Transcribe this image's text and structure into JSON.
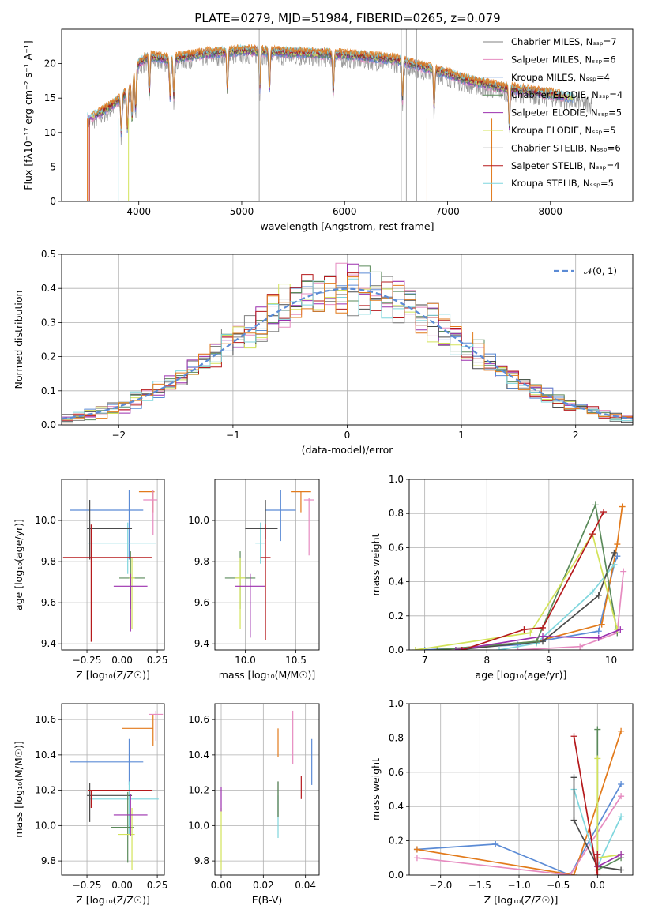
{
  "figure_title": "PLATE=0279, MJD=51984, FIBERID=0265, z=0.079",
  "colors": {
    "blue": "#5b8bd5",
    "orange": "#e27a1b",
    "green": "#5a8a5a",
    "pink": "#e68bc0",
    "purple": "#9b2fae",
    "yellow": "#d3e35a",
    "dark": "#4a4a4a",
    "red": "#b5191c",
    "cyan": "#7fd6dd",
    "grey": "#808080"
  },
  "chart_data": [
    {
      "id": "spectrum",
      "type": "line",
      "title": "PLATE=0279, MJD=51984, FIBERID=0265, z=0.079",
      "xlabel": "wavelength [Angstrom, rest frame]",
      "ylabel": "Flux [f$_\\lambda 10^{-17}$ erg cm$^{-2}$ s$^{-1}$ A$^{-1}$]",
      "xlim": [
        3250,
        8800
      ],
      "ylim": [
        0,
        25
      ],
      "xticks": [
        4000,
        5000,
        6000,
        7000,
        8000
      ],
      "yticks": [
        0,
        5,
        10,
        15,
        20
      ],
      "grid": false,
      "legend": "upper right",
      "continuum_x": [
        3500,
        3600,
        3750,
        3900,
        4000,
        4100,
        4300,
        4600,
        5000,
        5500,
        6000,
        6500,
        7000,
        7200,
        7500,
        8000,
        8400
      ],
      "continuum_y": [
        12,
        12.5,
        14,
        16,
        20,
        21,
        20.5,
        21.3,
        21.8,
        21.5,
        21.2,
        20.5,
        18.5,
        17.5,
        16.5,
        15.5,
        14.5
      ],
      "series": [
        {
          "name": "Chabrier MILES, N$_{SSP}$=7",
          "color": "grey"
        },
        {
          "name": "Salpeter MILES, N$_{SSP}$=6",
          "color": "pink"
        },
        {
          "name": "Kroupa MILES, N$_{SSP}$=4",
          "color": "blue"
        },
        {
          "name": "Chabrier ELODIE, N$_{SSP}$=4",
          "color": "green"
        },
        {
          "name": "Salpeter ELODIE, N$_{SSP}$=5",
          "color": "purple"
        },
        {
          "name": "Kroupa ELODIE, N$_{SSP}$=5",
          "color": "yellow"
        },
        {
          "name": "Chabrier STELIB, N$_{SSP}$=6",
          "color": "dark"
        },
        {
          "name": "Salpeter STELIB, N$_{SSP}$=4",
          "color": "red"
        },
        {
          "name": "Kroupa STELIB, N$_{SSP}$=5",
          "color": "cyan"
        }
      ]
    },
    {
      "id": "residuals",
      "type": "histogram",
      "xlabel": "(data-model)/error",
      "ylabel": "Normed distribution",
      "xlim": [
        -2.5,
        2.5
      ],
      "ylim": [
        0,
        0.5
      ],
      "xticks": [
        -2,
        -1,
        0,
        1,
        2
      ],
      "yticks": [
        0.0,
        0.1,
        0.2,
        0.3,
        0.4,
        0.5
      ],
      "grid": true,
      "legend": "upper right",
      "reference": {
        "name": "$\\mathcal{N}(0, 1)$",
        "color": "blue",
        "mean": 0,
        "sigma": 1
      },
      "bin_width": 0.1,
      "series_colors": [
        "grey",
        "pink",
        "blue",
        "green",
        "purple",
        "yellow",
        "dark",
        "red",
        "cyan",
        "orange"
      ]
    },
    {
      "id": "age_vs_Z",
      "type": "errorbar",
      "xlabel": "Z [log$_{10}$(Z/Z$_\\odot$)]",
      "ylabel": "age  [log$_{10}$(age/yr)]",
      "xlim": [
        -0.43,
        0.3
      ],
      "ylim": [
        9.37,
        10.2
      ],
      "xticks": [
        -0.25,
        0.0,
        0.25
      ],
      "yticks": [
        9.4,
        9.6,
        9.8,
        10.0
      ],
      "grid": true,
      "points": [
        {
          "color": "blue",
          "x": 0.05,
          "xerr": [
            0.42,
            0.1
          ],
          "y": 10.05,
          "yerr": [
            0.24,
            0.1
          ]
        },
        {
          "color": "orange",
          "x": 0.22,
          "xerr": [
            0.1,
            0.01
          ],
          "y": 10.14,
          "yerr": [
            0.1,
            0.0
          ]
        },
        {
          "color": "pink",
          "x": 0.22,
          "xerr": [
            0.07,
            0.03
          ],
          "y": 10.1,
          "yerr": [
            0.17,
            0.05
          ]
        },
        {
          "color": "cyan",
          "x": 0.04,
          "xerr": [
            0.28,
            0.2
          ],
          "y": 9.89,
          "yerr": [
            0.15,
            0.1
          ]
        },
        {
          "color": "dark",
          "x": -0.23,
          "xerr": [
            0.02,
            0.3
          ],
          "y": 9.96,
          "yerr": [
            0.15,
            0.14
          ]
        },
        {
          "color": "green",
          "x": 0.06,
          "xerr": [
            0.08,
            0.1
          ],
          "y": 9.72,
          "yerr": [
            0.15,
            0.13
          ]
        },
        {
          "color": "yellow",
          "x": 0.07,
          "xerr": [
            0.02,
            0.02
          ],
          "y": 9.72,
          "yerr": [
            0.25,
            0.1
          ]
        },
        {
          "color": "purple",
          "x": 0.06,
          "xerr": [
            0.12,
            0.12
          ],
          "y": 9.68,
          "yerr": [
            0.22,
            0.06
          ]
        },
        {
          "color": "red",
          "x": -0.22,
          "xerr": [
            0.2,
            0.43
          ],
          "y": 9.82,
          "yerr": [
            0.41,
            0.16
          ]
        }
      ]
    },
    {
      "id": "age_vs_mass",
      "type": "errorbar",
      "xlabel": "mass [log$_{10}$(M/M$_\\odot$)]",
      "ylabel": "",
      "xlim": [
        9.7,
        10.73
      ],
      "ylim": [
        9.37,
        10.2
      ],
      "xticks": [
        10.0,
        10.5
      ],
      "yticks": [
        9.4,
        9.6,
        9.8,
        10.0
      ],
      "grid": true,
      "points": [
        {
          "color": "blue",
          "x": 10.35,
          "xerr": [
            0.15,
            0.15
          ],
          "y": 10.05,
          "yerr": [
            0.15,
            0.1
          ]
        },
        {
          "color": "orange",
          "x": 10.55,
          "xerr": [
            0.1,
            0.1
          ],
          "y": 10.14,
          "yerr": [
            0.1,
            0.0
          ]
        },
        {
          "color": "pink",
          "x": 10.63,
          "xerr": [
            0.05,
            0.05
          ],
          "y": 10.1,
          "yerr": [
            0.27,
            0.01
          ]
        },
        {
          "color": "cyan",
          "x": 10.15,
          "xerr": [
            0.05,
            0.05
          ],
          "y": 9.89,
          "yerr": [
            0.1,
            0.1
          ]
        },
        {
          "color": "dark",
          "x": 10.2,
          "xerr": [
            0.2,
            0.12
          ],
          "y": 9.96,
          "yerr": [
            0.05,
            0.14
          ]
        },
        {
          "color": "green",
          "x": 9.95,
          "xerr": [
            0.15,
            0.15
          ],
          "y": 9.72,
          "yerr": [
            0.15,
            0.13
          ]
        },
        {
          "color": "yellow",
          "x": 9.95,
          "xerr": [
            0.05,
            0.05
          ],
          "y": 9.72,
          "yerr": [
            0.25,
            0.1
          ]
        },
        {
          "color": "purple",
          "x": 10.05,
          "xerr": [
            0.15,
            0.15
          ],
          "y": 9.68,
          "yerr": [
            0.25,
            0.06
          ]
        },
        {
          "color": "red",
          "x": 10.2,
          "xerr": [
            0.05,
            0.05
          ],
          "y": 9.82,
          "yerr": [
            0.4,
            0.16
          ]
        }
      ]
    },
    {
      "id": "weight_vs_age",
      "type": "line",
      "xlabel": "age  [log$_{10}$(age/yr)]",
      "ylabel": "mass weight",
      "xlim": [
        6.75,
        10.35
      ],
      "ylim": [
        0,
        1.0
      ],
      "xticks": [
        7,
        8,
        9,
        10
      ],
      "yticks": [
        0.0,
        0.2,
        0.4,
        0.6,
        0.8,
        1.0
      ],
      "grid": true,
      "series": [
        {
          "color": "blue",
          "points": [
            [
              7.0,
              0.0
            ],
            [
              8.5,
              0.03
            ],
            [
              9.8,
              0.11
            ],
            [
              10.05,
              0.5
            ],
            [
              10.1,
              0.55
            ]
          ]
        },
        {
          "color": "orange",
          "points": [
            [
              7.2,
              0.0
            ],
            [
              8.8,
              0.05
            ],
            [
              9.85,
              0.15
            ],
            [
              10.1,
              0.62
            ],
            [
              10.18,
              0.84
            ]
          ]
        },
        {
          "color": "pink",
          "points": [
            [
              8.5,
              0.0
            ],
            [
              9.5,
              0.02
            ],
            [
              10.1,
              0.1
            ],
            [
              10.2,
              0.46
            ]
          ]
        },
        {
          "color": "cyan",
          "points": [
            [
              8.2,
              0.0
            ],
            [
              8.8,
              0.04
            ],
            [
              9.7,
              0.34
            ],
            [
              10.05,
              0.5
            ]
          ]
        },
        {
          "color": "dark",
          "points": [
            [
              7.5,
              0.0
            ],
            [
              8.9,
              0.05
            ],
            [
              9.8,
              0.32
            ],
            [
              10.05,
              0.57
            ]
          ]
        },
        {
          "color": "green",
          "points": [
            [
              7.2,
              0.0
            ],
            [
              8.8,
              0.05
            ],
            [
              9.75,
              0.85
            ],
            [
              10.1,
              0.1
            ]
          ]
        },
        {
          "color": "yellow",
          "points": [
            [
              6.85,
              0.0
            ],
            [
              8.7,
              0.1
            ],
            [
              9.7,
              0.68
            ],
            [
              10.1,
              0.12
            ]
          ]
        },
        {
          "color": "purple",
          "points": [
            [
              7.5,
              0.0
            ],
            [
              8.9,
              0.08
            ],
            [
              9.8,
              0.07
            ],
            [
              10.15,
              0.12
            ]
          ]
        },
        {
          "color": "red",
          "points": [
            [
              7.6,
              0.0
            ],
            [
              8.6,
              0.12
            ],
            [
              8.9,
              0.13
            ],
            [
              9.7,
              0.68
            ],
            [
              9.88,
              0.81
            ]
          ]
        }
      ]
    },
    {
      "id": "mass_vs_Z",
      "type": "errorbar",
      "xlabel": "Z [log$_{10}$(Z/Z$_\\odot$)]",
      "ylabel": "mass [log$_{10}$(M/M$_\\odot$)]",
      "xlim": [
        -0.43,
        0.3
      ],
      "ylim": [
        9.72,
        10.69
      ],
      "xticks": [
        -0.25,
        0.0,
        0.25
      ],
      "yticks": [
        9.8,
        10.0,
        10.2,
        10.4,
        10.6
      ],
      "grid": true,
      "points": [
        {
          "color": "blue",
          "x": 0.05,
          "xerr": [
            0.42,
            0.1
          ],
          "y": 10.36,
          "yerr": [
            0.13,
            0.13
          ]
        },
        {
          "color": "orange",
          "x": 0.22,
          "xerr": [
            0.22,
            0.0
          ],
          "y": 10.55,
          "yerr": [
            0.1,
            0.08
          ]
        },
        {
          "color": "pink",
          "x": 0.24,
          "xerr": [
            0.05,
            0.05
          ],
          "y": 10.63,
          "yerr": [
            0.15,
            0.02
          ]
        },
        {
          "color": "cyan",
          "x": 0.05,
          "xerr": [
            0.28,
            0.21
          ],
          "y": 10.15,
          "yerr": [
            0.2,
            0.1
          ]
        },
        {
          "color": "dark",
          "x": -0.23,
          "xerr": [
            0.02,
            0.3
          ],
          "y": 10.17,
          "yerr": [
            0.15,
            0.07
          ]
        },
        {
          "color": "green",
          "x": 0.04,
          "xerr": [
            0.12,
            0.04
          ],
          "y": 9.99,
          "yerr": [
            0.2,
            0.2
          ]
        },
        {
          "color": "yellow",
          "x": 0.07,
          "xerr": [
            0.1,
            0.02
          ],
          "y": 9.95,
          "yerr": [
            0.2,
            0.15
          ]
        },
        {
          "color": "purple",
          "x": 0.06,
          "xerr": [
            0.12,
            0.12
          ],
          "y": 10.06,
          "yerr": [
            0.12,
            0.12
          ]
        },
        {
          "color": "red",
          "x": -0.22,
          "xerr": [
            0.02,
            0.43
          ],
          "y": 10.2,
          "yerr": [
            0.1,
            0.0
          ]
        }
      ]
    },
    {
      "id": "mass_vs_ebv",
      "type": "errorbar",
      "xlabel": "E(B-V)",
      "ylabel": "",
      "xlim": [
        -0.003,
        0.0465
      ],
      "ylim": [
        9.72,
        10.69
      ],
      "xticks": [
        0.0,
        0.02,
        0.04
      ],
      "yticks": [
        9.8,
        10.0,
        10.2,
        10.4,
        10.6
      ],
      "grid": true,
      "points": [
        {
          "color": "blue",
          "x": 0.043,
          "y": 10.36,
          "yerr": [
            0.13,
            0.13
          ]
        },
        {
          "color": "orange",
          "x": 0.027,
          "y": 10.47,
          "yerr": [
            0.08,
            0.08
          ]
        },
        {
          "color": "pink",
          "x": 0.034,
          "y": 10.5,
          "yerr": [
            0.15,
            0.15
          ]
        },
        {
          "color": "cyan",
          "x": 0.027,
          "y": 10.05,
          "yerr": [
            0.12,
            0.12
          ]
        },
        {
          "color": "dark",
          "x": 0.027,
          "y": 10.15,
          "yerr": [
            0.1,
            0.1
          ]
        },
        {
          "color": "green",
          "x": 0.027,
          "y": 10.15,
          "yerr": [
            0.1,
            0.1
          ]
        },
        {
          "color": "yellow",
          "x": 0.0,
          "y": 9.95,
          "yerr": [
            0.2,
            0.15
          ]
        },
        {
          "color": "purple",
          "x": 0.0,
          "y": 10.15,
          "yerr": [
            0.07,
            0.07
          ]
        },
        {
          "color": "red",
          "x": 0.038,
          "y": 10.2,
          "yerr": [
            0.05,
            0.08
          ]
        }
      ]
    },
    {
      "id": "weight_vs_Z",
      "type": "line",
      "xlabel": "Z [log$_{10}$(Z/Z$_\\odot$)]",
      "ylabel": "mass weight",
      "xlim": [
        -2.4,
        0.45
      ],
      "ylim": [
        0,
        1.0
      ],
      "xticks": [
        -2.0,
        -1.5,
        -1.0,
        -0.5,
        0.0
      ],
      "yticks": [
        0.0,
        0.2,
        0.4,
        0.6,
        0.8,
        1.0
      ],
      "grid": true,
      "series": [
        {
          "color": "blue",
          "points": [
            [
              -2.3,
              0.15
            ],
            [
              -1.3,
              0.18
            ],
            [
              -0.35,
              0.0
            ],
            [
              0.3,
              0.53
            ]
          ]
        },
        {
          "color": "orange",
          "points": [
            [
              -2.3,
              0.15
            ],
            [
              -0.3,
              0.0
            ],
            [
              0.3,
              0.84
            ]
          ]
        },
        {
          "color": "pink",
          "points": [
            [
              -2.3,
              0.1
            ],
            [
              -0.35,
              0.0
            ],
            [
              0.3,
              0.46
            ]
          ]
        },
        {
          "color": "cyan",
          "points": [
            [
              -0.3,
              0.5
            ],
            [
              0.0,
              0.05
            ],
            [
              0.3,
              0.34
            ]
          ]
        },
        {
          "color": "dark",
          "points": [
            [
              -0.3,
              0.57
            ],
            [
              -0.3,
              0.32
            ],
            [
              0.0,
              0.05
            ],
            [
              0.3,
              0.03
            ]
          ]
        },
        {
          "color": "green",
          "points": [
            [
              0.0,
              0.85
            ],
            [
              0.0,
              0.03
            ],
            [
              0.3,
              0.1
            ]
          ]
        },
        {
          "color": "yellow",
          "points": [
            [
              0.0,
              0.68
            ],
            [
              0.0,
              0.1
            ],
            [
              0.3,
              0.12
            ]
          ]
        },
        {
          "color": "purple",
          "points": [
            [
              0.0,
              0.12
            ],
            [
              0.0,
              0.05
            ],
            [
              0.3,
              0.12
            ]
          ]
        },
        {
          "color": "red",
          "points": [
            [
              -0.3,
              0.81
            ],
            [
              0.0,
              0.0
            ],
            [
              0.0,
              0.12
            ]
          ]
        }
      ]
    }
  ]
}
